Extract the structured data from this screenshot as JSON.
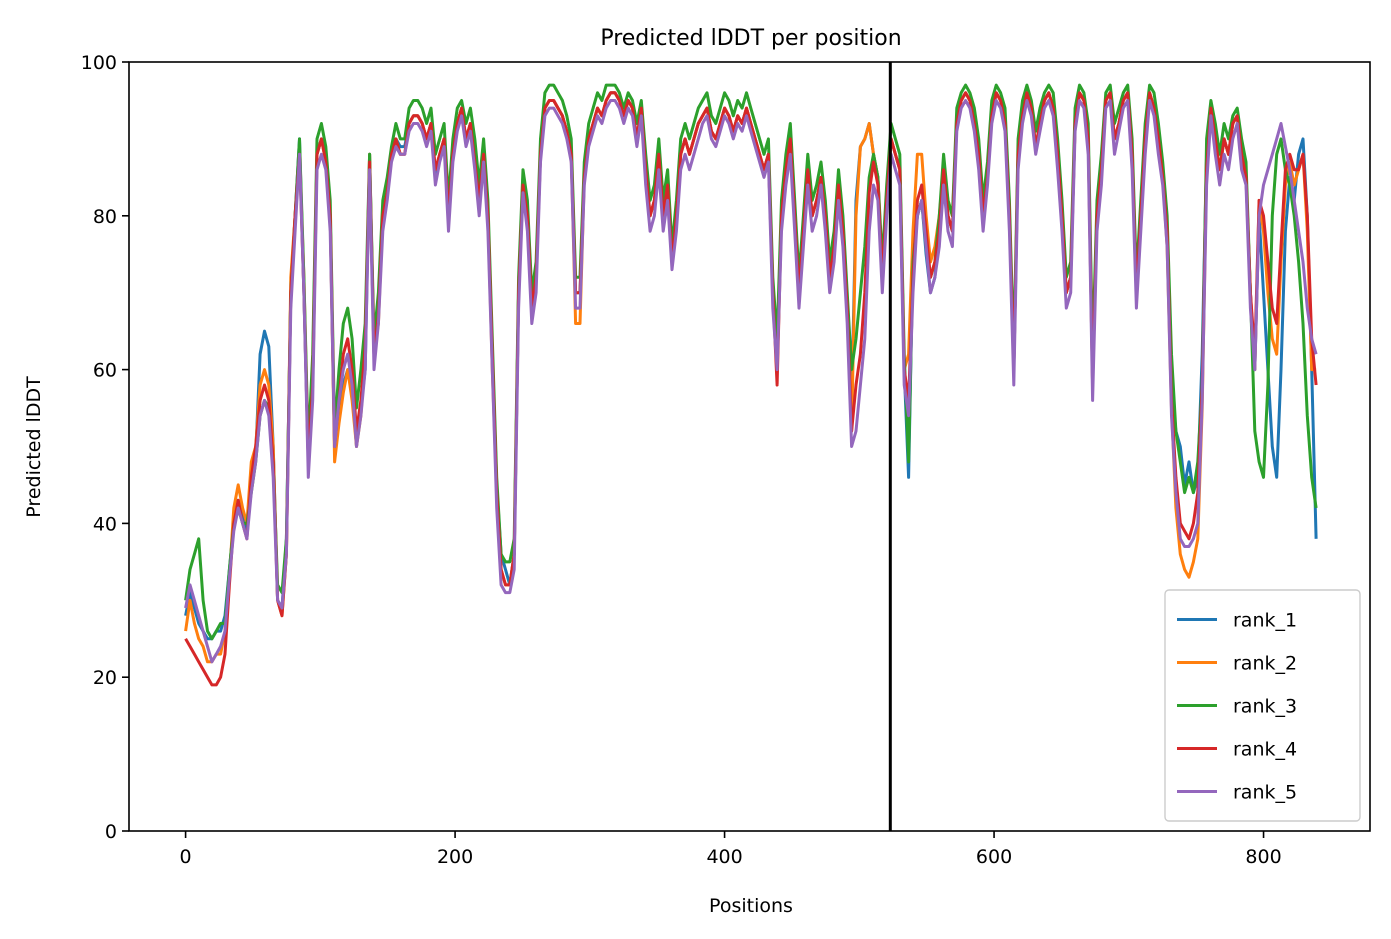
{
  "chart_data": {
    "type": "line",
    "title": "Predicted lDDT per position",
    "xlabel": "Positions",
    "ylabel": "Predicted lDDT",
    "xlim": [
      -42,
      879
    ],
    "ylim": [
      0,
      100
    ],
    "xticks": [
      0,
      200,
      400,
      600,
      800
    ],
    "yticks": [
      0,
      20,
      40,
      60,
      80,
      100
    ],
    "grid": false,
    "legend_position": "lower-right",
    "vline_x": 523,
    "x_step": 5,
    "x_end": 839,
    "colors": {
      "rank_1": "#1f77b4",
      "rank_2": "#ff7f0e",
      "rank_3": "#2ca02c",
      "rank_4": "#d62728",
      "rank_5": "#9467bd",
      "boundary": "#000000"
    },
    "series": [
      {
        "name": "rank_1",
        "values": [
          28,
          31,
          29,
          27,
          26,
          25,
          25,
          26,
          26,
          28,
          34,
          40,
          43,
          41,
          39,
          45,
          49,
          62,
          65,
          63,
          50,
          30,
          29,
          38,
          70,
          80,
          90,
          70,
          48,
          60,
          88,
          90,
          88,
          80,
          50,
          55,
          58,
          60,
          58,
          50,
          55,
          60,
          88,
          62,
          68,
          80,
          83,
          88,
          90,
          89,
          89,
          92,
          93,
          93,
          92,
          90,
          92,
          85,
          88,
          90,
          80,
          88,
          92,
          94,
          90,
          92,
          88,
          82,
          88,
          80,
          62,
          45,
          36,
          34,
          32,
          36,
          70,
          85,
          80,
          68,
          72,
          88,
          94,
          95,
          95,
          94,
          93,
          91,
          88,
          70,
          70,
          85,
          90,
          92,
          94,
          93,
          95,
          96,
          96,
          95,
          93,
          95,
          94,
          90,
          94,
          86,
          80,
          82,
          88,
          80,
          84,
          74,
          80,
          88,
          90,
          88,
          90,
          92,
          93,
          94,
          91,
          90,
          92,
          94,
          93,
          91,
          93,
          92,
          94,
          92,
          90,
          88,
          86,
          88,
          70,
          62,
          80,
          86,
          90,
          80,
          70,
          78,
          86,
          80,
          82,
          85,
          80,
          72,
          76,
          84,
          78,
          68,
          55,
          82,
          89,
          90,
          92,
          88,
          85,
          72,
          82,
          90,
          88,
          86,
          60,
          46,
          75,
          80,
          82,
          75,
          70,
          72,
          78,
          86,
          80,
          78,
          92,
          95,
          96,
          95,
          92,
          88,
          80,
          85,
          93,
          96,
          95,
          92,
          80,
          60,
          88,
          93,
          96,
          94,
          89,
          92,
          95,
          96,
          94,
          88,
          80,
          70,
          72,
          92,
          96,
          95,
          90,
          60,
          80,
          86,
          95,
          96,
          90,
          92,
          95,
          96,
          88,
          70,
          80,
          90,
          96,
          94,
          90,
          85,
          78,
          58,
          52,
          50,
          45,
          48,
          44,
          46,
          62,
          88,
          94,
          90,
          86,
          90,
          88,
          92,
          93,
          88,
          85,
          70,
          60,
          80,
          70,
          60,
          50,
          46,
          60,
          78,
          85,
          82,
          88,
          90,
          80,
          60,
          38
        ]
      },
      {
        "name": "rank_2",
        "values": [
          26,
          30,
          27,
          25,
          24,
          22,
          22,
          23,
          23,
          26,
          33,
          42,
          45,
          42,
          40,
          48,
          50,
          58,
          60,
          58,
          50,
          30,
          28,
          36,
          72,
          80,
          88,
          72,
          48,
          58,
          88,
          90,
          87,
          80,
          48,
          53,
          57,
          60,
          56,
          50,
          54,
          62,
          88,
          62,
          66,
          80,
          83,
          88,
          90,
          88,
          88,
          92,
          93,
          93,
          92,
          90,
          92,
          86,
          88,
          90,
          80,
          88,
          92,
          94,
          90,
          92,
          87,
          82,
          88,
          80,
          60,
          44,
          34,
          32,
          32,
          36,
          70,
          84,
          80,
          68,
          72,
          88,
          94,
          95,
          95,
          94,
          93,
          91,
          88,
          66,
          66,
          85,
          90,
          92,
          94,
          93,
          95,
          96,
          96,
          95,
          93,
          95,
          94,
          90,
          94,
          86,
          80,
          82,
          88,
          80,
          84,
          75,
          80,
          88,
          90,
          88,
          90,
          92,
          93,
          94,
          91,
          90,
          92,
          94,
          93,
          91,
          93,
          92,
          94,
          92,
          90,
          88,
          86,
          88,
          70,
          60,
          80,
          86,
          90,
          80,
          70,
          78,
          86,
          80,
          82,
          85,
          80,
          72,
          76,
          84,
          78,
          68,
          52,
          80,
          89,
          90,
          92,
          88,
          85,
          72,
          82,
          90,
          88,
          86,
          60,
          62,
          78,
          88,
          88,
          80,
          74,
          76,
          80,
          86,
          82,
          80,
          92,
          95,
          96,
          95,
          92,
          88,
          80,
          85,
          93,
          96,
          95,
          92,
          80,
          60,
          88,
          93,
          96,
          94,
          89,
          92,
          95,
          96,
          94,
          88,
          80,
          70,
          72,
          92,
          96,
          95,
          90,
          58,
          80,
          86,
          95,
          96,
          90,
          92,
          95,
          96,
          88,
          70,
          80,
          90,
          96,
          94,
          90,
          85,
          76,
          55,
          42,
          36,
          34,
          33,
          35,
          38,
          55,
          86,
          94,
          90,
          86,
          90,
          88,
          92,
          93,
          88,
          85,
          70,
          60,
          82,
          78,
          70,
          64,
          62,
          74,
          84,
          87,
          84,
          86,
          88,
          78,
          60,
          60
        ]
      },
      {
        "name": "rank_3",
        "values": [
          30,
          34,
          36,
          38,
          30,
          26,
          25,
          26,
          27,
          27,
          34,
          40,
          42,
          40,
          40,
          44,
          48,
          54,
          56,
          55,
          48,
          32,
          31,
          38,
          70,
          80,
          90,
          72,
          50,
          62,
          90,
          92,
          89,
          82,
          52,
          60,
          66,
          68,
          64,
          55,
          60,
          66,
          88,
          64,
          70,
          82,
          85,
          89,
          92,
          90,
          90,
          94,
          95,
          95,
          94,
          92,
          94,
          88,
          90,
          92,
          82,
          90,
          94,
          95,
          92,
          94,
          90,
          84,
          90,
          82,
          64,
          46,
          36,
          35,
          35,
          38,
          72,
          86,
          82,
          70,
          74,
          90,
          96,
          97,
          97,
          96,
          95,
          93,
          90,
          72,
          72,
          87,
          92,
          94,
          96,
          95,
          97,
          97,
          97,
          96,
          94,
          96,
          95,
          92,
          95,
          88,
          82,
          84,
          90,
          82,
          86,
          76,
          82,
          90,
          92,
          90,
          92,
          94,
          95,
          96,
          93,
          92,
          94,
          96,
          95,
          93,
          95,
          94,
          96,
          94,
          92,
          90,
          88,
          90,
          72,
          64,
          82,
          88,
          92,
          82,
          72,
          80,
          88,
          82,
          84,
          87,
          82,
          74,
          78,
          86,
          80,
          70,
          60,
          64,
          70,
          76,
          85,
          88,
          85,
          74,
          84,
          92,
          90,
          88,
          62,
          48,
          74,
          80,
          82,
          76,
          72,
          74,
          80,
          88,
          82,
          80,
          94,
          96,
          97,
          96,
          94,
          90,
          82,
          87,
          95,
          97,
          96,
          94,
          82,
          62,
          90,
          95,
          97,
          95,
          91,
          94,
          96,
          97,
          96,
          90,
          82,
          72,
          74,
          94,
          97,
          96,
          92,
          62,
          82,
          88,
          96,
          97,
          92,
          94,
          96,
          97,
          90,
          72,
          82,
          92,
          97,
          96,
          92,
          87,
          80,
          62,
          52,
          48,
          44,
          46,
          44,
          48,
          58,
          90,
          95,
          92,
          88,
          92,
          90,
          93,
          94,
          90,
          87,
          70,
          52,
          48,
          46,
          58,
          80,
          88,
          90,
          86,
          84,
          80,
          74,
          66,
          54,
          46,
          42
        ]
      },
      {
        "name": "rank_4",
        "values": [
          25,
          24,
          23,
          22,
          21,
          20,
          19,
          19,
          20,
          23,
          32,
          40,
          43,
          40,
          38,
          46,
          50,
          56,
          58,
          56,
          48,
          30,
          28,
          36,
          70,
          80,
          88,
          70,
          48,
          58,
          88,
          90,
          87,
          80,
          50,
          56,
          62,
          64,
          60,
          52,
          56,
          63,
          87,
          62,
          67,
          80,
          83,
          88,
          90,
          88,
          88,
          92,
          93,
          93,
          92,
          90,
          92,
          86,
          88,
          90,
          80,
          88,
          92,
          94,
          90,
          92,
          87,
          82,
          88,
          80,
          62,
          44,
          34,
          32,
          32,
          36,
          70,
          84,
          80,
          68,
          72,
          88,
          94,
          95,
          95,
          94,
          93,
          91,
          88,
          70,
          70,
          85,
          90,
          92,
          94,
          93,
          95,
          96,
          96,
          95,
          93,
          95,
          94,
          90,
          94,
          86,
          80,
          82,
          88,
          80,
          84,
          74,
          80,
          88,
          90,
          88,
          90,
          92,
          93,
          94,
          91,
          90,
          92,
          94,
          93,
          91,
          93,
          92,
          94,
          92,
          90,
          88,
          86,
          88,
          70,
          58,
          80,
          86,
          90,
          80,
          70,
          78,
          86,
          80,
          82,
          85,
          80,
          72,
          76,
          84,
          78,
          68,
          52,
          58,
          62,
          70,
          83,
          87,
          84,
          72,
          82,
          90,
          88,
          86,
          60,
          56,
          72,
          82,
          84,
          78,
          72,
          74,
          78,
          86,
          80,
          78,
          92,
          95,
          96,
          95,
          92,
          88,
          80,
          85,
          93,
          96,
          95,
          92,
          80,
          60,
          88,
          93,
          96,
          94,
          89,
          92,
          95,
          96,
          94,
          88,
          80,
          70,
          72,
          92,
          96,
          95,
          90,
          58,
          80,
          86,
          95,
          96,
          90,
          92,
          95,
          96,
          88,
          70,
          80,
          90,
          96,
          94,
          90,
          85,
          78,
          56,
          46,
          40,
          39,
          38,
          40,
          44,
          58,
          86,
          94,
          90,
          86,
          90,
          88,
          92,
          93,
          88,
          85,
          70,
          62,
          82,
          80,
          74,
          68,
          66,
          76,
          86,
          88,
          86,
          86,
          88,
          80,
          64,
          58
        ]
      },
      {
        "name": "rank_5",
        "values": [
          29,
          32,
          30,
          28,
          26,
          24,
          22,
          23,
          24,
          26,
          33,
          39,
          42,
          40,
          38,
          44,
          48,
          54,
          56,
          54,
          46,
          30,
          29,
          36,
          68,
          78,
          88,
          70,
          46,
          56,
          86,
          88,
          86,
          78,
          50,
          56,
          60,
          62,
          58,
          50,
          54,
          60,
          86,
          60,
          66,
          78,
          82,
          87,
          89,
          88,
          88,
          91,
          92,
          92,
          91,
          89,
          91,
          84,
          87,
          89,
          78,
          87,
          91,
          93,
          89,
          91,
          86,
          80,
          87,
          78,
          60,
          42,
          32,
          31,
          31,
          34,
          68,
          83,
          78,
          66,
          70,
          87,
          93,
          94,
          94,
          93,
          92,
          90,
          87,
          68,
          68,
          84,
          89,
          91,
          93,
          92,
          94,
          95,
          95,
          94,
          92,
          94,
          93,
          89,
          93,
          84,
          78,
          80,
          86,
          78,
          82,
          73,
          78,
          86,
          88,
          86,
          88,
          90,
          92,
          93,
          90,
          89,
          91,
          93,
          92,
          90,
          92,
          91,
          93,
          91,
          89,
          87,
          85,
          87,
          68,
          60,
          78,
          84,
          88,
          78,
          68,
          76,
          84,
          78,
          80,
          84,
          78,
          70,
          74,
          82,
          76,
          66,
          50,
          52,
          58,
          64,
          78,
          84,
          82,
          70,
          80,
          88,
          86,
          84,
          58,
          54,
          70,
          80,
          82,
          76,
          70,
          72,
          76,
          84,
          78,
          76,
          91,
          94,
          95,
          94,
          91,
          86,
          78,
          84,
          92,
          95,
          94,
          91,
          78,
          58,
          86,
          92,
          95,
          93,
          88,
          91,
          94,
          95,
          93,
          86,
          78,
          68,
          70,
          91,
          95,
          94,
          88,
          56,
          78,
          84,
          94,
          95,
          88,
          91,
          94,
          95,
          86,
          68,
          78,
          88,
          95,
          93,
          88,
          84,
          76,
          54,
          44,
          38,
          37,
          37,
          38,
          40,
          56,
          84,
          93,
          88,
          84,
          88,
          86,
          90,
          92,
          86,
          84,
          68,
          60,
          80,
          84,
          86,
          88,
          90,
          92,
          89,
          86,
          82,
          78,
          74,
          68,
          64,
          62
        ]
      }
    ]
  }
}
